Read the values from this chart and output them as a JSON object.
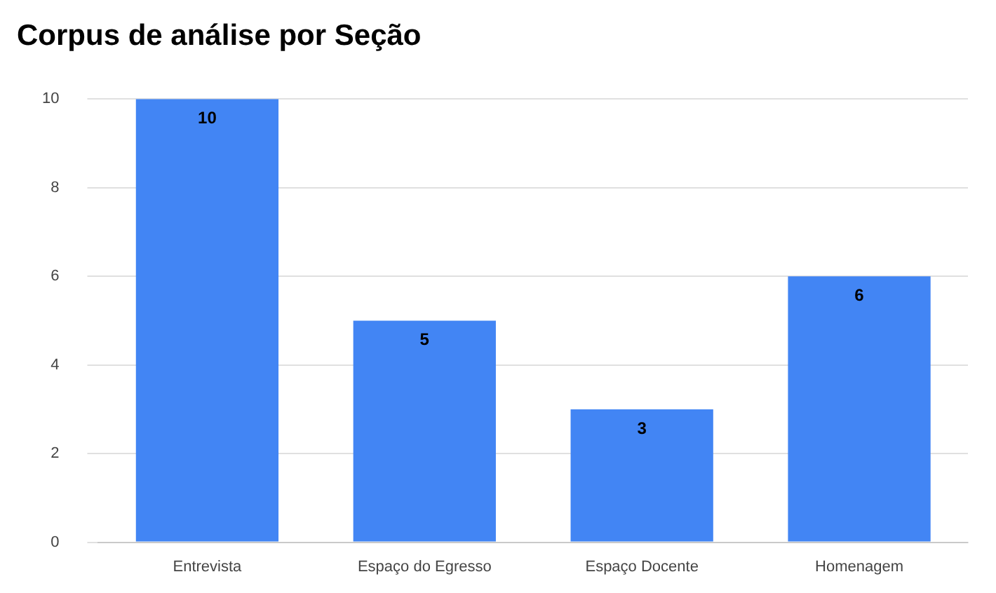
{
  "chart_data": {
    "type": "bar",
    "title": "Corpus de análise por Seção",
    "categories": [
      "Entrevista",
      "Espaço do Egresso",
      "Espaço Docente",
      "Homenagem"
    ],
    "values": [
      10,
      5,
      3,
      6
    ],
    "color": "#4285f4",
    "ylim": [
      0,
      10
    ],
    "yticks": [
      0,
      2,
      4,
      6,
      8,
      10
    ],
    "grid": "y",
    "legend": false,
    "data_labels": true
  }
}
